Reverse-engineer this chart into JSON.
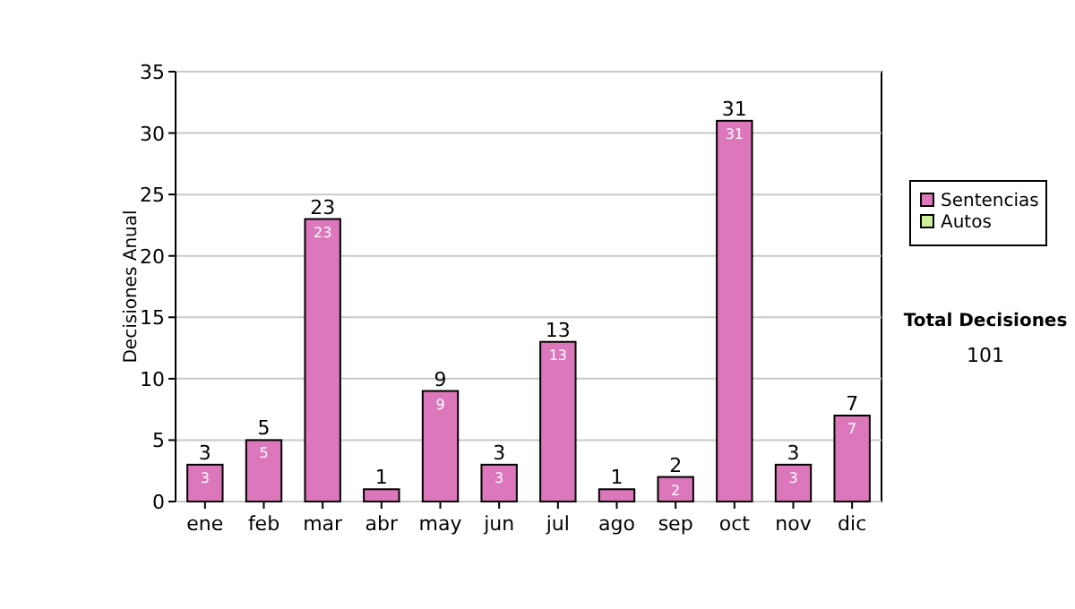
{
  "chart_data": {
    "type": "bar",
    "ylabel": "Decisiones Anual",
    "categories": [
      "ene",
      "feb",
      "mar",
      "abr",
      "may",
      "jun",
      "jul",
      "ago",
      "sep",
      "oct",
      "nov",
      "dic"
    ],
    "series": [
      {
        "name": "Sentencias",
        "color": "#dd77bb",
        "values": [
          3,
          5,
          23,
          1,
          9,
          3,
          13,
          1,
          2,
          31,
          3,
          7
        ],
        "value_labels": [
          "3",
          "5",
          "23",
          null,
          "9",
          "3",
          "13",
          null,
          "2",
          "31",
          "3",
          "7"
        ]
      },
      {
        "name": "Autos",
        "color": "#ccee99",
        "values": [
          0,
          0,
          0,
          0,
          0,
          0,
          0,
          0,
          0,
          0,
          0,
          0
        ]
      }
    ],
    "stacked": true,
    "totals": [
      "3",
      "5",
      "23",
      "1",
      "9",
      "3",
      "13",
      "1",
      "2",
      "31",
      "3",
      "7"
    ],
    "ylim": [
      0,
      35
    ],
    "yticks": [
      0,
      5,
      10,
      15,
      20,
      25,
      30,
      35
    ],
    "grid": "y",
    "legend": "right",
    "annotations": [
      "Total Decisiones",
      "101"
    ]
  }
}
